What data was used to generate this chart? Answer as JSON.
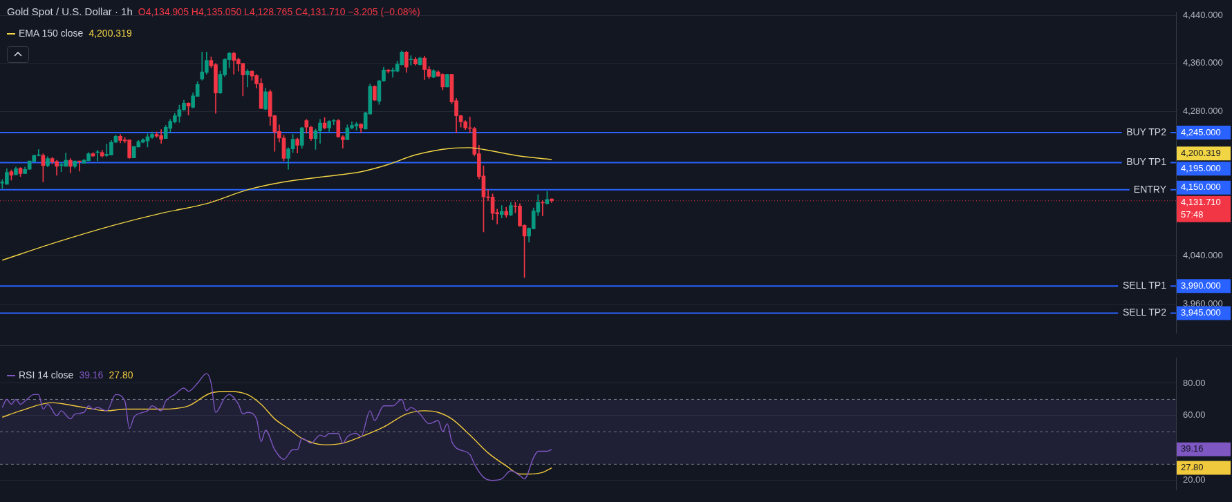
{
  "chart_data": [
    {
      "type": "candlestick",
      "title": "Gold Spot / U.S. Dollar · 1h",
      "annotations": [
        "O4,134.905 H4,135.050 L4,128.765 C4,131.710 −3.205 (−0.08%)",
        "4,200.319",
        "4,200.319",
        "4,245.000",
        "4,195.000",
        "4,150.000",
        "3,990.000",
        "3,945.000",
        "4,131.710",
        "57:48"
      ],
      "categories": [
        null,
        null,
        null,
        null,
        null,
        null,
        null,
        null,
        null,
        null,
        null,
        null,
        null,
        null,
        null,
        null,
        null,
        null,
        null,
        null,
        null,
        null,
        null,
        null,
        null,
        null,
        null,
        null,
        null,
        null,
        null,
        null,
        null,
        null,
        null,
        null,
        null,
        null,
        null,
        null,
        null,
        null,
        null,
        null,
        null,
        null,
        null,
        null,
        null,
        null,
        null,
        null,
        null,
        null,
        null,
        null,
        null,
        null,
        null,
        null,
        null,
        null,
        null,
        null,
        null,
        null,
        null,
        null,
        null,
        null,
        null,
        null,
        null,
        null,
        null,
        null,
        null,
        null,
        null,
        null,
        null,
        null,
        null,
        null,
        null,
        null,
        null,
        null,
        null,
        null,
        null,
        null,
        null,
        null,
        null,
        null,
        null,
        null,
        null,
        null,
        null,
        null,
        null,
        null,
        null,
        null,
        null,
        null,
        null,
        null,
        null,
        null,
        null,
        null,
        null,
        null,
        null,
        null,
        null,
        null,
        null,
        null,
        null,
        null,
        null,
        null,
        null,
        null,
        null,
        null,
        null,
        null,
        null,
        null,
        null,
        null,
        null,
        null,
        null,
        null,
        null,
        null,
        null,
        null,
        null,
        null,
        null,
        null,
        null,
        null,
        null,
        null,
        null,
        null,
        null,
        null,
        null,
        null,
        null,
        null,
        null,
        null,
        null,
        null,
        null,
        null,
        null,
        null,
        null,
        null,
        null,
        null,
        null,
        null,
        null,
        null,
        null,
        null,
        null,
        null,
        null,
        null,
        null,
        null,
        null,
        null,
        null,
        null,
        null,
        null,
        null,
        null,
        null,
        null,
        null,
        null,
        null,
        null,
        null,
        null,
        null,
        null,
        null,
        null,
        null,
        null,
        null,
        null,
        null,
        null,
        null,
        null,
        null,
        null,
        null,
        null,
        null,
        null,
        null,
        null,
        null,
        null,
        null,
        null,
        null,
        null,
        null,
        null,
        null,
        null,
        null,
        null,
        null,
        null,
        null,
        null,
        null,
        null,
        null,
        null,
        null,
        null,
        null,
        null,
        null,
        null,
        null,
        null,
        null,
        null,
        null,
        null,
        null,
        null,
        null,
        null,
        null,
        null,
        null
      ],
      "ohlc": [
        [
          4161,
          4167,
          4152,
          4163
        ],
        [
          4159,
          4185,
          4159,
          4179
        ],
        [
          4180,
          4183,
          4166,
          4174
        ],
        [
          4175,
          4188,
          4175,
          4185
        ],
        [
          4186,
          4187,
          4172,
          4177
        ],
        [
          4177,
          4188,
          4177,
          4184
        ],
        [
          4184,
          4198,
          4184,
          4198
        ],
        [
          4197,
          4208,
          4196,
          4207
        ],
        [
          4207,
          4217,
          4206,
          4208
        ],
        [
          4207,
          4210,
          4163,
          4190
        ],
        [
          4190,
          4205,
          4188,
          4202
        ],
        [
          4202,
          4204,
          4193,
          4196
        ],
        [
          4197,
          4199,
          4174,
          4189
        ],
        [
          4190,
          4196,
          4180,
          4192
        ],
        [
          4189,
          4211,
          4189,
          4199
        ],
        [
          4199,
          4202,
          4178,
          4189
        ],
        [
          4189,
          4198,
          4186,
          4198
        ],
        [
          4198,
          4198,
          4181,
          4196
        ],
        [
          4194,
          4201,
          4194,
          4199
        ],
        [
          4198,
          4212,
          4198,
          4210
        ],
        [
          4210,
          4212,
          4205,
          4206
        ],
        [
          4212,
          4216,
          4198,
          4213
        ],
        [
          4212,
          4216,
          4204,
          4206
        ],
        [
          4207,
          4226,
          4205,
          4209
        ],
        [
          4208,
          4232,
          4208,
          4229
        ],
        [
          4229,
          4241,
          4228,
          4239
        ],
        [
          4239,
          4242,
          4228,
          4232
        ],
        [
          4233,
          4237,
          4228,
          4231
        ],
        [
          4233,
          4233,
          4202,
          4203
        ],
        [
          4203,
          4222,
          4203,
          4222
        ],
        [
          4221,
          4232,
          4221,
          4230
        ],
        [
          4229,
          4235,
          4228,
          4233
        ],
        [
          4231,
          4243,
          4221,
          4238
        ],
        [
          4237,
          4246,
          4235,
          4242
        ],
        [
          4242,
          4246,
          4237,
          4239
        ],
        [
          4240,
          4250,
          4227,
          4234
        ],
        [
          4235,
          4257,
          4235,
          4254
        ],
        [
          4252,
          4267,
          4245,
          4264
        ],
        [
          4263,
          4277,
          4261,
          4273
        ],
        [
          4272,
          4291,
          4262,
          4283
        ],
        [
          4283,
          4299,
          4282,
          4294
        ],
        [
          4294,
          4295,
          4274,
          4289
        ],
        [
          4287,
          4311,
          4286,
          4306
        ],
        [
          4305,
          4330,
          4305,
          4325
        ],
        [
          4334,
          4379,
          4332,
          4346
        ],
        [
          4345,
          4379,
          4342,
          4365
        ],
        [
          4365,
          4371,
          4353,
          4356
        ],
        [
          4358,
          4360,
          4277,
          4311
        ],
        [
          4311,
          4347,
          4310,
          4342
        ],
        [
          4341,
          4368,
          4338,
          4367
        ],
        [
          4366,
          4379,
          4353,
          4377
        ],
        [
          4377,
          4379,
          4342,
          4365
        ],
        [
          4367,
          4369,
          4347,
          4359
        ],
        [
          4360,
          4360,
          4306,
          4341
        ],
        [
          4341,
          4350,
          4321,
          4347
        ],
        [
          4347,
          4348,
          4332,
          4339
        ],
        [
          4340,
          4342,
          4319,
          4326
        ],
        [
          4327,
          4335,
          4285,
          4285
        ],
        [
          4284,
          4319,
          4283,
          4313
        ],
        [
          4313,
          4316,
          4257,
          4272
        ],
        [
          4273,
          4274,
          4214,
          4246
        ],
        [
          4247,
          4258,
          4229,
          4236
        ],
        [
          4236,
          4241,
          4198,
          4202
        ],
        [
          4202,
          4220,
          4184,
          4218
        ],
        [
          4218,
          4242,
          4212,
          4234
        ],
        [
          4234,
          4236,
          4211,
          4224
        ],
        [
          4224,
          4254,
          4219,
          4253
        ],
        [
          4265,
          4267,
          4244,
          4254
        ],
        [
          4254,
          4256,
          4232,
          4235
        ],
        [
          4235,
          4251,
          4217,
          4248
        ],
        [
          4248,
          4267,
          4227,
          4261
        ],
        [
          4261,
          4270,
          4251,
          4253
        ],
        [
          4253,
          4265,
          4247,
          4264
        ],
        [
          4264,
          4267,
          4258,
          4265
        ],
        [
          4265,
          4267,
          4237,
          4238
        ],
        [
          4238,
          4240,
          4219,
          4233
        ],
        [
          4233,
          4258,
          4233,
          4253
        ],
        [
          4253,
          4263,
          4251,
          4257
        ],
        [
          4256,
          4262,
          4249,
          4259
        ],
        [
          4259,
          4260,
          4245,
          4253
        ],
        [
          4251,
          4279,
          4251,
          4278
        ],
        [
          4276,
          4326,
          4276,
          4322
        ],
        [
          4322,
          4323,
          4298,
          4299
        ],
        [
          4297,
          4332,
          4292,
          4331
        ],
        [
          4331,
          4354,
          4330,
          4349
        ],
        [
          4349,
          4350,
          4344,
          4347
        ],
        [
          4347,
          4353,
          4337,
          4349
        ],
        [
          4347,
          4364,
          4346,
          4359
        ],
        [
          4358,
          4381,
          4357,
          4379
        ],
        [
          4379,
          4380,
          4345,
          4354
        ],
        [
          4366,
          4373,
          4357,
          4367
        ],
        [
          4367,
          4370,
          4357,
          4359
        ],
        [
          4358,
          4371,
          4357,
          4369
        ],
        [
          4369,
          4372,
          4333,
          4350
        ],
        [
          4350,
          4355,
          4335,
          4338
        ],
        [
          4337,
          4350,
          4336,
          4348
        ],
        [
          4346,
          4348,
          4338,
          4339
        ],
        [
          4342,
          4343,
          4316,
          4321
        ],
        [
          4321,
          4342,
          4321,
          4342
        ],
        [
          4342,
          4342,
          4293,
          4296
        ],
        [
          4298,
          4302,
          4245,
          4273
        ],
        [
          4273,
          4274,
          4254,
          4263
        ],
        [
          4263,
          4265,
          4250,
          4253
        ],
        [
          4253,
          4271,
          4245,
          4252
        ],
        [
          4252,
          4254,
          4206,
          4209
        ],
        [
          4210,
          4224,
          4168,
          4172
        ],
        [
          4173,
          4190,
          4080,
          4138
        ],
        [
          4138,
          4150,
          4132,
          4137
        ],
        [
          4138,
          4143,
          4100,
          4111
        ],
        [
          4112,
          4118,
          4093,
          4110
        ],
        [
          4109,
          4124,
          4103,
          4114
        ],
        [
          4114,
          4121,
          4104,
          4108
        ],
        [
          4108,
          4129,
          4107,
          4124
        ],
        [
          4123,
          4129,
          4112,
          4122
        ],
        [
          4123,
          4127,
          4089,
          4090
        ],
        [
          4091,
          4092,
          4004,
          4073
        ],
        [
          4073,
          4087,
          4063,
          4086
        ],
        [
          4085,
          4120,
          4085,
          4115
        ],
        [
          4113,
          4142,
          4107,
          4129
        ],
        [
          4129,
          4132,
          4107,
          4128
        ],
        [
          4127,
          4147,
          4126,
          4134
        ],
        [
          4134.905,
          4135.05,
          4128.765,
          4131.71
        ],
        null,
        null,
        null,
        null,
        null,
        null,
        null,
        null,
        null,
        null,
        null,
        null,
        null,
        null,
        null,
        null,
        null,
        null,
        null,
        null,
        null,
        null,
        null,
        null,
        null,
        null,
        null,
        null,
        null,
        null,
        null,
        null,
        null,
        null,
        null,
        null,
        null,
        null,
        null,
        null,
        null,
        null,
        null,
        null,
        null,
        null,
        null,
        null,
        null,
        null,
        null,
        null,
        null,
        null,
        null,
        null,
        null,
        null,
        null,
        null,
        null,
        null,
        null,
        null,
        null,
        null,
        null,
        null,
        null,
        null,
        null,
        null,
        null,
        null,
        null,
        null,
        null,
        null,
        null,
        null,
        null,
        null,
        null,
        null,
        null,
        null,
        null,
        null,
        null,
        null,
        null,
        null,
        null,
        null,
        null,
        null,
        null,
        null,
        null,
        null,
        null,
        null,
        null,
        null,
        null,
        null,
        null,
        null,
        null,
        null,
        null,
        null,
        null,
        null,
        null,
        null,
        null,
        null,
        null,
        null,
        null,
        null,
        null,
        null,
        null,
        null,
        null,
        null,
        null,
        null,
        null,
        null,
        null,
        null,
        null,
        null,
        null
      ],
      "series": [
        {
          "type": "line",
          "name": "EMA 150 close",
          "color": "#f2d544",
          "values": [
            4033,
            null,
            null,
            null,
            null,
            null,
            null,
            null,
            null,
            null,
            null,
            null,
            4063,
            null,
            null,
            null,
            null,
            null,
            null,
            null,
            null,
            null,
            null,
            null,
            null,
            4092,
            null,
            null,
            null,
            null,
            null,
            null,
            null,
            null,
            null,
            4111,
            null,
            null,
            null,
            null,
            null,
            null,
            null,
            null,
            null,
            4127,
            null,
            null,
            null,
            null,
            null,
            null,
            null,
            null,
            4150,
            null,
            null,
            null,
            null,
            null,
            null,
            null,
            4163,
            null,
            null,
            null,
            null,
            null,
            null,
            null,
            4171,
            null,
            null,
            null,
            null,
            null,
            null,
            null,
            null,
            4180,
            null,
            null,
            null,
            null,
            null,
            4192,
            null,
            null,
            null,
            null,
            null,
            4208,
            null,
            null,
            null,
            null,
            null,
            null,
            null,
            4219,
            null,
            null,
            null,
            4220,
            null,
            null,
            4217,
            null,
            null,
            null,
            null,
            null,
            null,
            null,
            4206,
            null,
            null,
            null,
            null,
            null,
            null,
            4200.319,
            null,
            null,
            null,
            null,
            null,
            null,
            null,
            null,
            null,
            null,
            null,
            null,
            null,
            null,
            null,
            null,
            null,
            null,
            null,
            null,
            null,
            null,
            null,
            null,
            null,
            null,
            null,
            null,
            null,
            null,
            null,
            null,
            null,
            null,
            null,
            null,
            null,
            null,
            null,
            null,
            null,
            null,
            null,
            null,
            null,
            null,
            null,
            null,
            null,
            null,
            null,
            null,
            null,
            null,
            null,
            null,
            null,
            null,
            null,
            null,
            null,
            null,
            null,
            null,
            null,
            null,
            null,
            null,
            null,
            null,
            null,
            null,
            null,
            null,
            null,
            null,
            null,
            null,
            null,
            null,
            null,
            null,
            null,
            null,
            null,
            null,
            null,
            null,
            null,
            null,
            null,
            null,
            null,
            null,
            null,
            null,
            null,
            null,
            null,
            null,
            null,
            null,
            null,
            null,
            null,
            null,
            null,
            null,
            null,
            null,
            null,
            null,
            null,
            null,
            null,
            null,
            null,
            null,
            null,
            null,
            null,
            null,
            null,
            null,
            null,
            null,
            null,
            null,
            null,
            null,
            null,
            null,
            null,
            null,
            null,
            null,
            null
          ]
        }
      ],
      "ylim": [
        3912,
        4445
      ],
      "yticks": [
        {
          "value": 4440,
          "label": "4,440.000"
        },
        {
          "value": 4360,
          "label": "4,360.000"
        },
        {
          "value": 4280,
          "label": "4,280.000"
        },
        {
          "value": 4040,
          "label": "4,040.000"
        },
        {
          "value": 3960,
          "label": "3,960.000"
        }
      ],
      "ref_lines": [
        {
          "axis": "y",
          "value": 4245,
          "label": "BUY TP2",
          "color": "#2962ff"
        },
        {
          "axis": "y",
          "value": 4195,
          "label": "BUY TP1",
          "color": "#2962ff"
        },
        {
          "axis": "y",
          "value": 4150,
          "label": "ENTRY",
          "color": "#2962ff"
        },
        {
          "axis": "y",
          "value": 3990,
          "label": "SELL TP1",
          "color": "#2962ff"
        },
        {
          "axis": "y",
          "value": 3945,
          "label": "SELL TP2",
          "color": "#2962ff"
        },
        {
          "axis": "y",
          "value": 4131.71,
          "color": "#f23645",
          "line_style": "dotted"
        }
      ],
      "grid": "y",
      "legend": "top left",
      "tick_labels": "y"
    },
    {
      "type": "line",
      "annotations": [
        "39.16",
        "27.80",
        "39.16",
        "27.80"
      ],
      "categories": [
        null,
        null,
        null,
        null,
        null,
        null,
        null,
        null,
        null,
        null,
        null,
        null,
        null,
        null,
        null,
        null,
        null,
        null,
        null,
        null,
        null,
        null,
        null,
        null,
        null,
        null,
        null,
        null,
        null,
        null,
        null,
        null,
        null,
        null,
        null,
        null,
        null,
        null,
        null,
        null,
        null,
        null,
        null,
        null,
        null,
        null,
        null,
        null,
        null,
        null,
        null,
        null,
        null,
        null,
        null,
        null,
        null,
        null,
        null,
        null,
        null,
        null,
        null,
        null,
        null,
        null,
        null,
        null,
        null,
        null,
        null,
        null,
        null,
        null,
        null,
        null,
        null,
        null,
        null,
        null,
        null,
        null,
        null,
        null,
        null,
        null,
        null,
        null,
        null,
        null,
        null,
        null,
        null,
        null,
        null,
        null,
        null,
        null,
        null,
        null,
        null,
        null,
        null,
        null,
        null,
        null,
        null,
        null,
        null,
        null,
        null,
        null,
        null,
        null,
        null,
        null,
        null,
        null,
        null,
        null,
        null,
        null,
        null,
        null,
        null,
        null,
        null,
        null,
        null,
        null,
        null,
        null,
        null,
        null,
        null,
        null,
        null,
        null,
        null,
        null,
        null,
        null,
        null,
        null,
        null,
        null,
        null,
        null,
        null,
        null,
        null,
        null,
        null,
        null,
        null,
        null,
        null,
        null,
        null,
        null,
        null,
        null,
        null,
        null,
        null,
        null,
        null,
        null,
        null,
        null,
        null,
        null,
        null,
        null,
        null,
        null,
        null,
        null,
        null,
        null,
        null,
        null,
        null,
        null,
        null,
        null,
        null,
        null,
        null,
        null,
        null,
        null,
        null,
        null,
        null,
        null,
        null,
        null,
        null,
        null,
        null,
        null,
        null,
        null,
        null,
        null,
        null,
        null,
        null,
        null,
        null,
        null,
        null,
        null,
        null,
        null,
        null,
        null,
        null,
        null,
        null,
        null,
        null,
        null,
        null,
        null,
        null,
        null,
        null,
        null,
        null,
        null,
        null,
        null,
        null,
        null,
        null,
        null,
        null,
        null,
        null,
        null,
        null,
        null,
        null,
        null,
        null,
        null,
        null,
        null,
        null,
        null,
        null,
        null,
        null,
        null,
        null,
        null,
        null
      ],
      "series": [
        {
          "name": "RSI 14 close",
          "color": "#7e57c2",
          "values": [
            65,
            70,
            67,
            70,
            67,
            69,
            null,
            73,
            73,
            64,
            67,
            null,
            60,
            63,
            null,
            58,
            61,
            null,
            62,
            66,
            64,
            65,
            null,
            63,
            null,
            73,
            null,
            69,
            52,
            59,
            null,
            62,
            63,
            66,
            null,
            63,
            69,
            null,
            73,
            null,
            77,
            75,
            null,
            80,
            null,
            86,
            80,
            62,
            null,
            71,
            73,
            null,
            67,
            61,
            62,
            null,
            58,
            44,
            51,
            null,
            39,
            null,
            33,
            null,
            39,
            39,
            46,
            null,
            43,
            null,
            48,
            47,
            49,
            null,
            49,
            43,
            47,
            null,
            49,
            47,
            null,
            63,
            57,
            null,
            66,
            null,
            66,
            null,
            70,
            63,
            65,
            null,
            61,
            null,
            55,
            null,
            57,
            50,
            55,
            44,
            40,
            null,
            null,
            36,
            30,
            null,
            22,
            null,
            20,
            null,
            21,
            null,
            26,
            null,
            23,
            21,
            null,
            34,
            38,
            null,
            38,
            39.16,
            null,
            null,
            null,
            null,
            null,
            null,
            null,
            null,
            null,
            null,
            null,
            null,
            null,
            null,
            null,
            null,
            null,
            null,
            null,
            null,
            null,
            null,
            null,
            null,
            null,
            null,
            null,
            null,
            null,
            null,
            null,
            null,
            null,
            null,
            null,
            null,
            null,
            null,
            null,
            null,
            null,
            null,
            null,
            null,
            null,
            null,
            null,
            null,
            null,
            null,
            null,
            null,
            null,
            null,
            null,
            null,
            null,
            null,
            null,
            null,
            null,
            null,
            null,
            null,
            null,
            null,
            null,
            null,
            null,
            null,
            null,
            null,
            null,
            null,
            null,
            null,
            null,
            null,
            null,
            null,
            null,
            null,
            null,
            null,
            null,
            null,
            null,
            null,
            null,
            null,
            null,
            null,
            null,
            null,
            null,
            null,
            null,
            null,
            null,
            null,
            null,
            null,
            null,
            null,
            null,
            null,
            null,
            null,
            null,
            null,
            null,
            null,
            null,
            null,
            null,
            null,
            null,
            null,
            null,
            null,
            null,
            null,
            null,
            null,
            null,
            null,
            null,
            null,
            null,
            null,
            null,
            null,
            null,
            null,
            null,
            null,
            null
          ]
        },
        {
          "color": "#f0c93c",
          "values": [
            59,
            null,
            null,
            null,
            63,
            null,
            null,
            null,
            null,
            null,
            null,
            68,
            null,
            null,
            67,
            null,
            null,
            null,
            65,
            null,
            null,
            null,
            null,
            63,
            null,
            null,
            null,
            64,
            null,
            null,
            null,
            null,
            null,
            null,
            null,
            64,
            null,
            null,
            null,
            null,
            null,
            66,
            null,
            null,
            null,
            null,
            74,
            null,
            null,
            null,
            75,
            null,
            null,
            null,
            73,
            null,
            null,
            67,
            null,
            null,
            58,
            null,
            null,
            52,
            null,
            null,
            46,
            null,
            null,
            null,
            null,
            42,
            null,
            null,
            null,
            43,
            null,
            null,
            null,
            47,
            null,
            null,
            null,
            null,
            53,
            null,
            null,
            null,
            null,
            61,
            null,
            null,
            null,
            63,
            null,
            null,
            62,
            null,
            null,
            58,
            null,
            null,
            null,
            48,
            null,
            null,
            null,
            37,
            null,
            null,
            null,
            29,
            null,
            null,
            24,
            null,
            24,
            null,
            null,
            25,
            null,
            27.8,
            null,
            null,
            null,
            null,
            null,
            null,
            null,
            null,
            null,
            null,
            null,
            null,
            null,
            null,
            null,
            null,
            null,
            null,
            null,
            null,
            null,
            null,
            null,
            null,
            null,
            null,
            null,
            null,
            null,
            null,
            null,
            null,
            null,
            null,
            null,
            null,
            null,
            null,
            null,
            null,
            null,
            null,
            null,
            null,
            null,
            null,
            null,
            null,
            null,
            null,
            null,
            null,
            null,
            null,
            null,
            null,
            null,
            null,
            null,
            null,
            null,
            null,
            null,
            null,
            null,
            null,
            null,
            null,
            null,
            null,
            null,
            null,
            null,
            null,
            null,
            null,
            null,
            null,
            null,
            null,
            null,
            null,
            null,
            null,
            null,
            null,
            null,
            null,
            null,
            null,
            null,
            null,
            null,
            null,
            null,
            null,
            null,
            null,
            null,
            null,
            null,
            null,
            null,
            null,
            null,
            null,
            null,
            null,
            null,
            null,
            null,
            null,
            null,
            null,
            null,
            null,
            null,
            null,
            null,
            null,
            null,
            null,
            null,
            null,
            null,
            null,
            null,
            null,
            null,
            null,
            null,
            null,
            null,
            null,
            null,
            null,
            null
          ]
        }
      ],
      "ylim": [
        14.3,
        95.4
      ],
      "yticks": [
        {
          "value": 20,
          "label": "20.00"
        },
        {
          "value": 60,
          "label": "60.00"
        },
        {
          "value": 80,
          "label": "80.00"
        }
      ],
      "ref_lines": [
        {
          "axis": "y",
          "value": 70,
          "color": "#787b86",
          "line_style": "dashed"
        },
        {
          "axis": "y",
          "value": 50,
          "color": "#787b86",
          "line_style": "dashed"
        },
        {
          "axis": "y",
          "value": 30,
          "color": "#787b86",
          "line_style": "dashed"
        }
      ],
      "bands": [
        {
          "axis": "y",
          "from": 30,
          "to": 70,
          "color": "#7e57c2"
        }
      ],
      "grid": "y",
      "legend": "top left",
      "tick_labels": "y"
    }
  ]
}
